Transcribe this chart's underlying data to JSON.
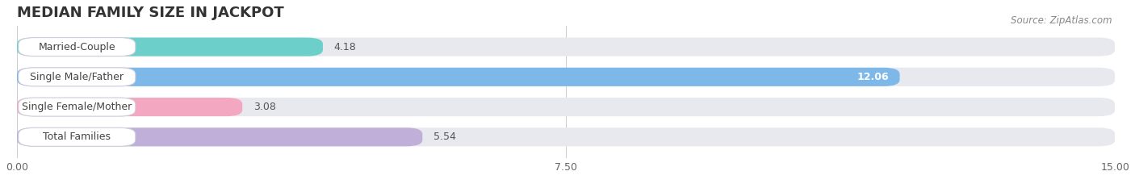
{
  "title": "MEDIAN FAMILY SIZE IN JACKPOT",
  "source": "Source: ZipAtlas.com",
  "categories": [
    "Married-Couple",
    "Single Male/Father",
    "Single Female/Mother",
    "Total Families"
  ],
  "values": [
    4.18,
    12.06,
    3.08,
    5.54
  ],
  "bar_colors": [
    "#6dcfca",
    "#7db8e8",
    "#f4a7c0",
    "#c0afd8"
  ],
  "xlim": [
    0,
    15.0
  ],
  "xticks": [
    0.0,
    7.5,
    15.0
  ],
  "xtick_labels": [
    "0.00",
    "7.50",
    "15.00"
  ],
  "background_color": "#ffffff",
  "bar_background": "#e8e8ef",
  "title_fontsize": 13,
  "label_fontsize": 9,
  "value_fontsize": 9,
  "bar_height": 0.62,
  "bar_gap": 0.38
}
